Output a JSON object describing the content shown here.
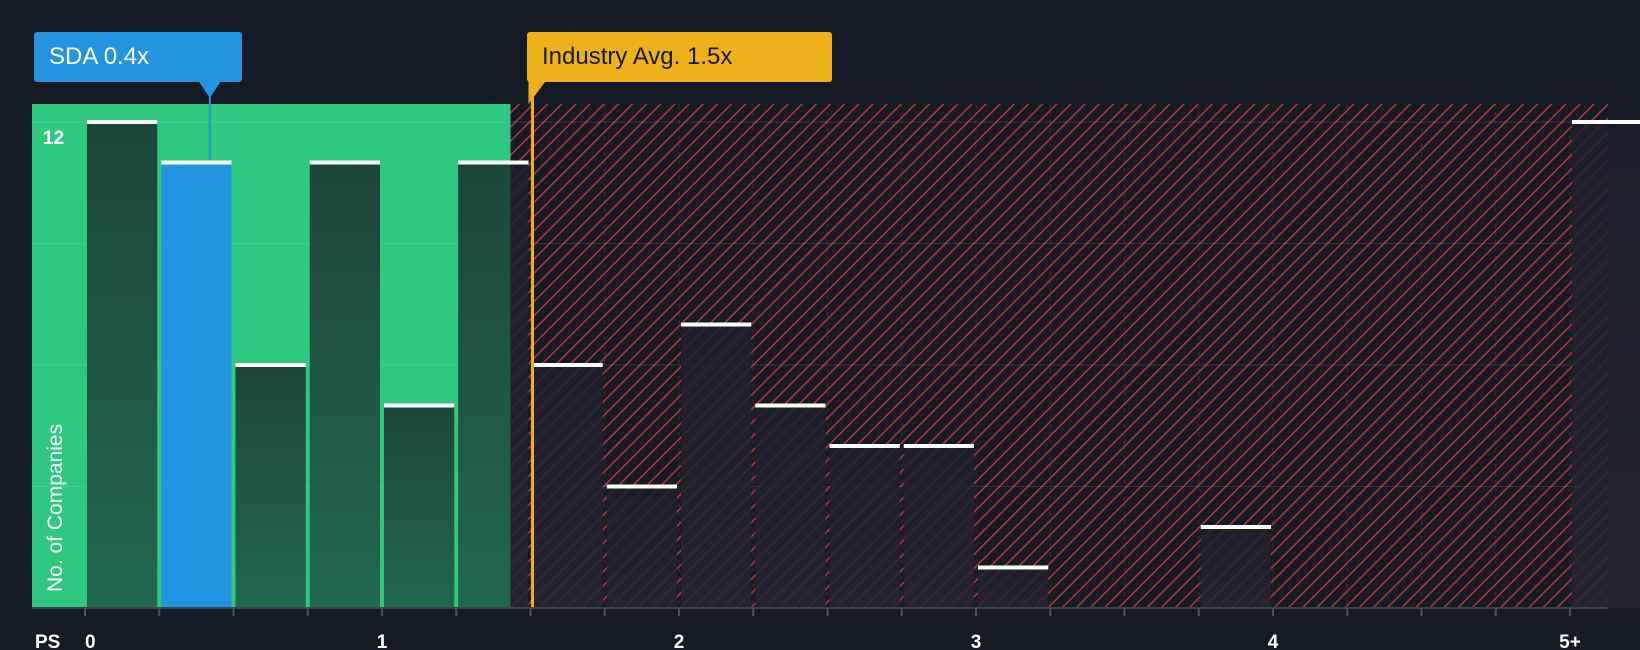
{
  "chart_data": {
    "type": "bar",
    "xlabel": "PS",
    "ylabel": "No. of Companies",
    "x_ticks": [
      "0",
      "1",
      "2",
      "3",
      "4",
      "5+"
    ],
    "y_tick_label": "12",
    "ylim": [
      0,
      12.4
    ],
    "bin_width": 0.25,
    "bins": [
      {
        "start": 0.0,
        "value": 12,
        "highlight": false
      },
      {
        "start": 0.25,
        "value": 11,
        "highlight": true
      },
      {
        "start": 0.5,
        "value": 6,
        "highlight": false
      },
      {
        "start": 0.75,
        "value": 11,
        "highlight": false
      },
      {
        "start": 1.0,
        "value": 5,
        "highlight": false
      },
      {
        "start": 1.25,
        "value": 11,
        "highlight": false
      },
      {
        "start": 1.5,
        "value": 6,
        "highlight": false
      },
      {
        "start": 1.75,
        "value": 3,
        "highlight": false
      },
      {
        "start": 2.0,
        "value": 7,
        "highlight": false
      },
      {
        "start": 2.25,
        "value": 5,
        "highlight": false
      },
      {
        "start": 2.5,
        "value": 4,
        "highlight": false
      },
      {
        "start": 2.75,
        "value": 4,
        "highlight": false
      },
      {
        "start": 3.0,
        "value": 1,
        "highlight": false
      },
      {
        "start": 3.25,
        "value": 0,
        "highlight": false
      },
      {
        "start": 3.5,
        "value": 0,
        "highlight": false
      },
      {
        "start": 3.75,
        "value": 2,
        "highlight": false
      },
      {
        "start": 4.0,
        "value": 0,
        "highlight": false
      },
      {
        "start": 4.25,
        "value": 0,
        "highlight": false
      },
      {
        "start": 4.5,
        "value": 0,
        "highlight": false
      },
      {
        "start": 4.75,
        "value": 0,
        "highlight": false
      },
      {
        "start": 5.0,
        "value": 12,
        "highlight": false
      }
    ],
    "company": {
      "label": "SDA 0.4x",
      "value": 0.4
    },
    "industry_avg": {
      "label": "Industry Avg. 1.5x",
      "value": 1.5
    },
    "colors": {
      "background": "#151b24",
      "undervalued_zone": "#2ec97e",
      "overvalued_hatch": "#c0323c",
      "bar_dark": "#1d4a3f",
      "bar_highlight": "#2394e0",
      "industry_line": "#eeb11c",
      "company_line": "#2394e0",
      "bar_cap": "#ffffff"
    }
  }
}
